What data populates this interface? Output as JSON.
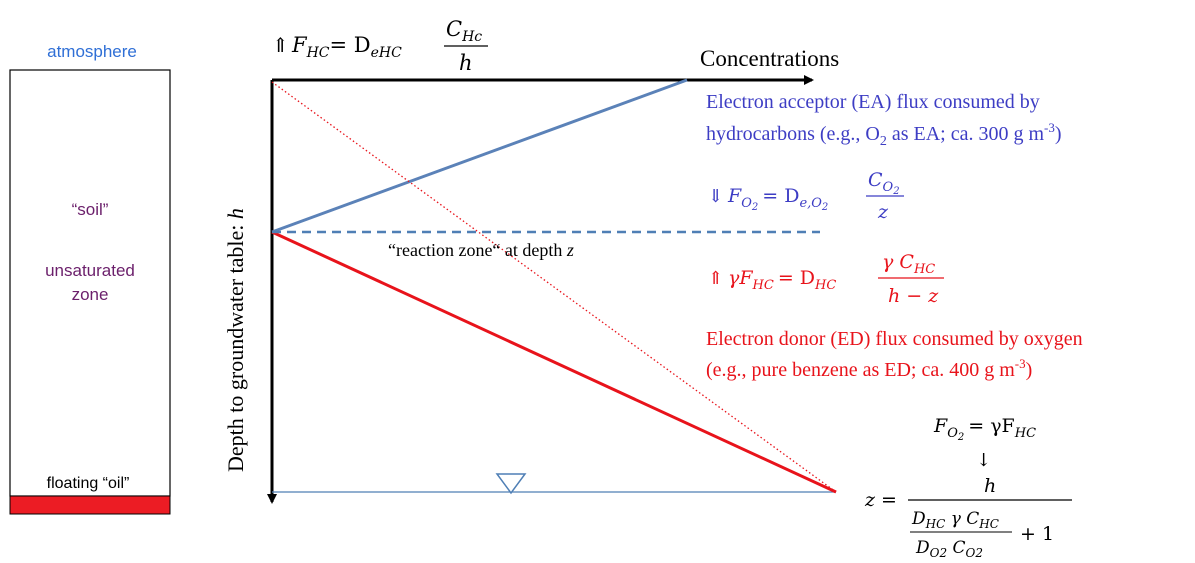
{
  "colors": {
    "blue_text": "#3d3dc4",
    "atmosphere_blue": "#2f6fd6",
    "purple": "#6b1f6b",
    "red": "#e8131b",
    "steel_blue": "#5b82b8",
    "dashed_blue": "#4f7fb5",
    "black": "#000000"
  },
  "column": {
    "atmosphere": "atmosphere",
    "soil": "“soil”",
    "unsaturated_1": "unsaturated",
    "unsaturated_2": "zone",
    "floating_oil": "floating “oil”"
  },
  "axes": {
    "x_label": "Concentrations",
    "y_label_prefix": "Depth to groundwater table: ",
    "y_label_var": "h"
  },
  "reaction_zone": {
    "label_prefix": "“reaction zone“ at depth ",
    "label_var": "z"
  },
  "equations": {
    "top_flux": {
      "arrow": "⇑",
      "lhs": "F",
      "lhs_sub": "HC",
      "eq": "= D",
      "d_sub": "eHC",
      "num": "C",
      "num_sub": "Hc",
      "den": "h"
    },
    "o2_flux": {
      "arrow": "⇓",
      "lhs": "F",
      "lhs_sub": "O",
      "lhs_subsub": "2",
      "eq": "= D",
      "d_sub": "e,O",
      "d_subsub": "2",
      "num": "C",
      "num_sub": "O",
      "num_subsub": "2",
      "den": "z"
    },
    "hc_flux": {
      "arrow": "⇑",
      "lhs": "γF",
      "lhs_sub": "HC",
      "eq": "= D",
      "d_sub": "HC",
      "num": "γ C",
      "num_sub": "HC",
      "den": "h − z"
    },
    "balance": {
      "lhs": "F",
      "lhs_sub": "O",
      "lhs_subsub": "2",
      "rhs": "= γF",
      "rhs_sub": "HC",
      "arrow": "↓"
    },
    "z_solution": {
      "lhs": "z =",
      "num": "h",
      "inner_num": "D",
      "inner_num_sub": "HC",
      "inner_num_rest": " γ C",
      "inner_num_rest_sub": "HC",
      "inner_den": "D",
      "inner_den_sub": "O2",
      "inner_den_rest": " C",
      "inner_den_rest_sub": "O2",
      "plus": "+ 1"
    }
  },
  "ea_text": {
    "line1": "Electron acceptor (EA) flux consumed by",
    "line2_a": "hydrocarbons (e.g., O",
    "line2_sub": "2",
    "line2_b": " as EA; ca. 300 g m",
    "line2_sup": "-3",
    "line2_c": ")"
  },
  "ed_text": {
    "line1": "Electron donor (ED) flux consumed by oxygen",
    "line2_a": "(e.g., pure benzene as ED; ca. 400 g m",
    "line2_sup": "-3",
    "line2_c": ")"
  }
}
